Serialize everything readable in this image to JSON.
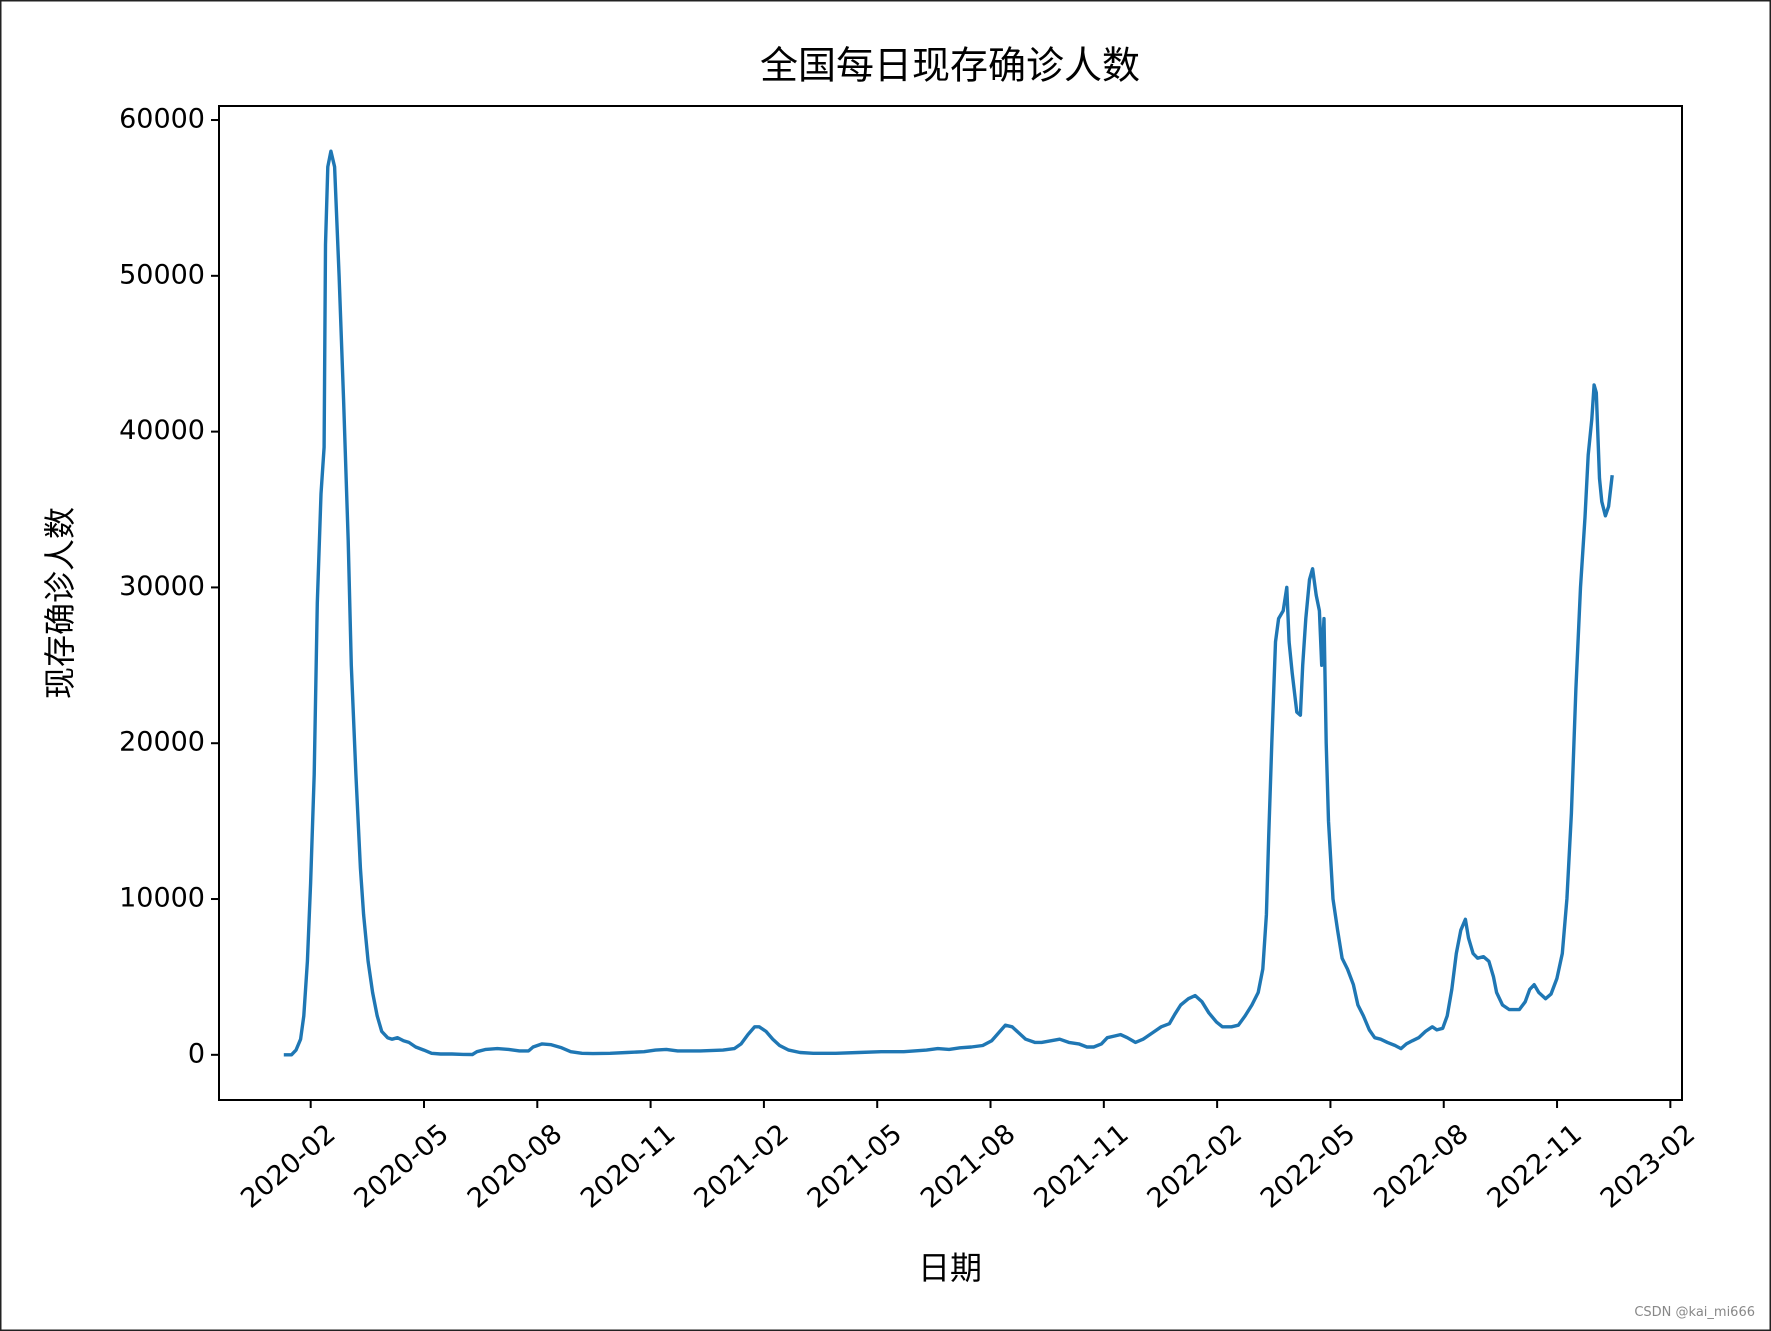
{
  "chart_data": {
    "type": "line",
    "title": "全国每日现存确诊人数",
    "xlabel": "日期",
    "ylabel": "现存确诊人数",
    "watermark": "CSDN @kai_mi666",
    "color": "#1f77b4",
    "x": [
      2020.024,
      2020.041,
      2020.051,
      2020.061,
      2020.068,
      2020.076,
      2020.083,
      2020.091,
      2020.098,
      2020.106,
      2020.113,
      2020.116,
      2020.121,
      2020.128,
      2020.136,
      2020.146,
      2020.156,
      2020.166,
      2020.173,
      2020.183,
      2020.193,
      2020.2,
      2020.21,
      2020.22,
      2020.23,
      2020.24,
      2020.253,
      2020.263,
      2020.275,
      2020.288,
      2020.3,
      2020.315,
      2020.333,
      2020.35,
      2020.37,
      2020.395,
      2020.42,
      2020.44,
      2020.45,
      2020.47,
      2020.495,
      2020.52,
      2020.544,
      2020.564,
      2020.574,
      2020.594,
      2020.614,
      2020.637,
      2020.657,
      2020.682,
      2020.706,
      2020.744,
      2020.781,
      2020.819,
      2020.844,
      2020.868,
      2020.893,
      2020.943,
      2020.993,
      2021.018,
      2021.033,
      2021.048,
      2021.063,
      2021.073,
      2021.088,
      2021.103,
      2021.118,
      2021.138,
      2021.163,
      2021.192,
      2021.242,
      2021.292,
      2021.342,
      2021.392,
      2021.442,
      2021.467,
      2021.492,
      2021.516,
      2021.541,
      2021.566,
      2021.586,
      2021.601,
      2021.616,
      2021.631,
      2021.646,
      2021.661,
      2021.681,
      2021.696,
      2021.716,
      2021.736,
      2021.756,
      2021.778,
      2021.796,
      2021.811,
      2021.828,
      2021.841,
      2021.856,
      2021.87,
      2021.885,
      2021.903,
      2021.92,
      2021.94,
      2021.96,
      2021.978,
      2021.99,
      2022.003,
      2022.02,
      2022.035,
      2022.05,
      2022.065,
      2022.082,
      2022.095,
      2022.115,
      2022.13,
      2022.145,
      2022.16,
      2022.174,
      2022.184,
      2022.192,
      2022.197,
      2022.204,
      2022.212,
      2022.219,
      2022.229,
      2022.237,
      2022.242,
      2022.249,
      2022.259,
      2022.267,
      2022.272,
      2022.279,
      2022.287,
      2022.294,
      2022.302,
      2022.309,
      2022.314,
      2022.319,
      2022.324,
      2022.329,
      2022.339,
      2022.349,
      2022.359,
      2022.371,
      2022.384,
      2022.394,
      2022.406,
      2022.419,
      2022.431,
      2022.444,
      2022.459,
      2022.476,
      2022.489,
      2022.501,
      2022.514,
      2022.528,
      2022.543,
      2022.558,
      2022.568,
      2022.581,
      2022.591,
      2022.601,
      2022.611,
      2022.621,
      2022.631,
      2022.638,
      2022.648,
      2022.658,
      2022.671,
      2022.683,
      2022.693,
      2022.7,
      2022.713,
      2022.728,
      2022.75,
      2022.763,
      2022.773,
      2022.783,
      2022.793,
      2022.808,
      2022.82,
      2022.833,
      2022.845,
      2022.855,
      2022.865,
      2022.875,
      2022.885,
      2022.895,
      2022.902,
      2022.91,
      2022.915,
      2022.92,
      2022.927,
      2022.932,
      2022.94,
      2022.947,
      2022.955
    ],
    "values": [
      0,
      0,
      300,
      1000,
      2500,
      6000,
      11000,
      18000,
      29000,
      36000,
      39000,
      52000,
      57000,
      58000,
      57000,
      50000,
      42000,
      33000,
      25000,
      18000,
      12000,
      9000,
      6000,
      4000,
      2500,
      1500,
      1100,
      1000,
      1100,
      900,
      800,
      500,
      300,
      100,
      50,
      50,
      30,
      20,
      200,
      350,
      400,
      350,
      250,
      250,
      500,
      700,
      650,
      450,
      200,
      100,
      80,
      100,
      150,
      200,
      300,
      350,
      250,
      250,
      300,
      400,
      700,
      1300,
      1800,
      1800,
      1500,
      1000,
      600,
      300,
      150,
      100,
      100,
      150,
      200,
      200,
      300,
      400,
      350,
      450,
      500,
      600,
      900,
      1400,
      1900,
      1800,
      1400,
      1000,
      800,
      800,
      900,
      1000,
      800,
      700,
      500,
      500,
      700,
      1100,
      1200,
      1300,
      1100,
      800,
      1000,
      1400,
      1800,
      2000,
      2600,
      3200,
      3600,
      3800,
      3400,
      2700,
      2100,
      1800,
      1800,
      1900,
      2500,
      3200,
      4000,
      5500,
      9000,
      14000,
      20000,
      26500,
      28000,
      28500,
      30000,
      26500,
      24500,
      22000,
      21800,
      25000,
      28000,
      30500,
      31200,
      29500,
      28500,
      25000,
      28000,
      20000,
      15000,
      10000,
      8000,
      6200,
      5500,
      4500,
      3200,
      2500,
      1600,
      1100,
      1000,
      800,
      600,
      400,
      700,
      900,
      1100,
      1500,
      1800,
      1600,
      1700,
      2500,
      4200,
      6500,
      8000,
      8700,
      7500,
      6500,
      6200,
      6300,
      6000,
      5000,
      4000,
      3200,
      2900,
      2900,
      3400,
      4200,
      4500,
      4000,
      3600,
      3900,
      4900,
      6500,
      10000,
      15500,
      23500,
      30000,
      34500,
      38500,
      40800,
      43000,
      42500,
      37000,
      35500,
      34600,
      35200,
      37200
    ],
    "xlim": [
      2019.881,
      2023.109
    ],
    "xticks": [
      {
        "value": 2020.0833,
        "label": "2020-02"
      },
      {
        "value": 2020.3333,
        "label": "2020-05"
      },
      {
        "value": 2020.5833,
        "label": "2020-08"
      },
      {
        "value": 2020.8333,
        "label": "2020-11"
      },
      {
        "value": 2021.0833,
        "label": "2021-02"
      },
      {
        "value": 2021.3333,
        "label": "2021-05"
      },
      {
        "value": 2021.5833,
        "label": "2021-08"
      },
      {
        "value": 2021.8333,
        "label": "2021-11"
      },
      {
        "value": 2022.0833,
        "label": "2022-02"
      },
      {
        "value": 2022.3333,
        "label": "2022-05"
      },
      {
        "value": 2022.5833,
        "label": "2022-08"
      },
      {
        "value": 2022.8333,
        "label": "2022-11"
      },
      {
        "value": 2023.0833,
        "label": "2023-02"
      }
    ],
    "ylim": [
      -2900,
      60900
    ],
    "yticks": [
      0,
      10000,
      20000,
      30000,
      40000,
      50000,
      60000
    ]
  }
}
